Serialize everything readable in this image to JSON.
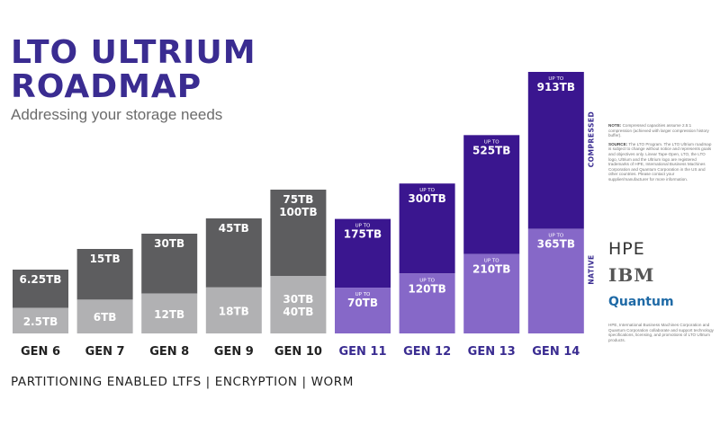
{
  "title_lines": [
    "LTO ULTRIUM",
    "ROADMAP"
  ],
  "subtitle": "Addressing your storage needs",
  "footer": "PARTITIONING ENABLED LTFS | ENCRYPTION | WORM",
  "axis_labels": {
    "compressed": "COMPRESSED",
    "native": "NATIVE"
  },
  "notes": {
    "note_label": "NOTE:",
    "note_text": "Compressed capacities assume 2.5:1 compression (achieved with larger compression history buffer).",
    "source_label": "SOURCE:",
    "source_text": "The LTO Program. The LTO Ultrium roadmap is subject to change without notice and represents goals and objectives only. Linear Tape-Open, LTO, the LTO logo, Ultrium and the Ultrium logo are registered trademarks of HPE, International Business Machines Corporation and Quantum Corporation in the US and other countries. Please contact your supplier/manufacturer for more information."
  },
  "logos": {
    "hpe": "HPE",
    "ibm": "IBM",
    "quantum": "Quantum"
  },
  "bottom_note": "HPE, International Business Machines Corporation and Quantum Corporation collaborate and support technology specifications, licensing, and promotions of LTO Ultrium products.",
  "colors": {
    "title": "#3a2c91",
    "past_compressed": "#5d5d5f",
    "past_native": "#b1b1b3",
    "future_compressed": "#3a168f",
    "future_native": "#8668c8",
    "past_label": "#222222",
    "future_label": "#3a2c91"
  },
  "chart_data": {
    "type": "bar",
    "stacked": "overlay",
    "categories": [
      "GEN 6",
      "GEN 7",
      "GEN 8",
      "GEN 9",
      "GEN 10",
      "GEN 11",
      "GEN 12",
      "GEN 13",
      "GEN 14"
    ],
    "series": [
      {
        "name": "COMPRESSED",
        "values": [
          "6.25TB",
          "15TB",
          "30TB",
          "45TB",
          [
            "75TB",
            "100TB"
          ],
          "175TB",
          "300TB",
          "525TB",
          "913TB"
        ]
      },
      {
        "name": "NATIVE",
        "values": [
          "2.5TB",
          "6TB",
          "12TB",
          "18TB",
          [
            "30TB",
            "40TB"
          ],
          "70TB",
          "120TB",
          "210TB",
          "365TB"
        ]
      }
    ],
    "prefix": [
      "",
      "",
      "",
      "",
      "",
      "UP TO",
      "UP TO",
      "UP TO",
      "UP TO"
    ],
    "future_start_index": 5,
    "compressed_tb": [
      6.25,
      15,
      30,
      45,
      100,
      175,
      300,
      525,
      913
    ],
    "native_tb": [
      2.5,
      6,
      12,
      18,
      40,
      70,
      120,
      210,
      365
    ],
    "axes": "none",
    "grid": false,
    "legend": "none"
  }
}
